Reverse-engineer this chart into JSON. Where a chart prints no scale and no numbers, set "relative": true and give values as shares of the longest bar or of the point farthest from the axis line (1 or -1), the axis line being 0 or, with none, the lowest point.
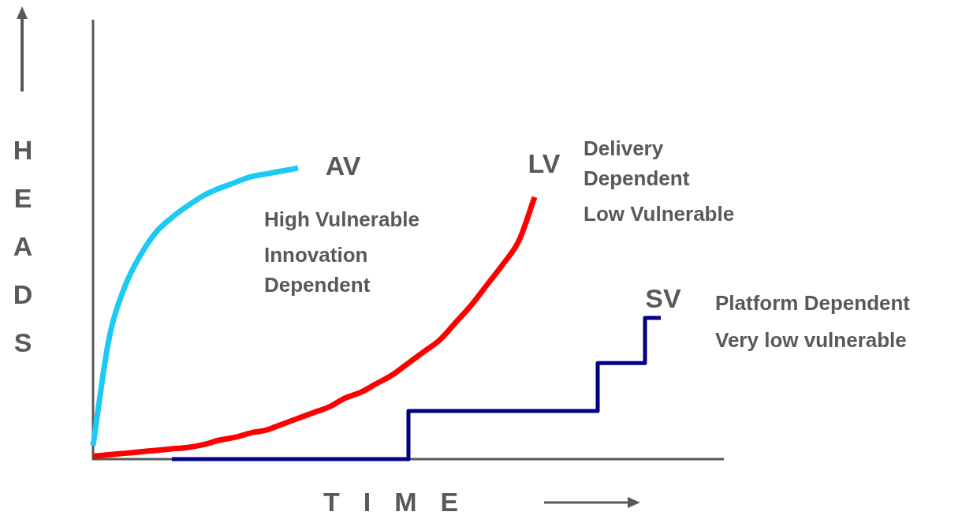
{
  "chart_data": {
    "type": "line",
    "relative": true,
    "xlabel": "TIME",
    "ylabel": "HEADS",
    "marker": "none",
    "categories": [
      null,
      null,
      null,
      null,
      null,
      null,
      null,
      null,
      null,
      null,
      null,
      null,
      null,
      null,
      null,
      null,
      null,
      null,
      null,
      null,
      null,
      null,
      null,
      null,
      null,
      null,
      null,
      null,
      null,
      null,
      null,
      null,
      null,
      null,
      null,
      null,
      null,
      null,
      null,
      null,
      null
    ],
    "series": [
      {
        "name": "AV",
        "color": "#1ccaf5",
        "values": [
          0.046,
          0.41,
          0.59,
          0.7,
          0.78,
          0.83,
          0.87,
          0.905,
          0.93,
          0.95,
          0.97,
          0.98,
          0.99,
          1.0,
          null,
          null,
          null,
          null,
          null,
          null,
          null,
          null,
          null,
          null,
          null,
          null,
          null,
          null,
          null,
          null,
          null,
          null,
          null,
          null,
          null,
          null,
          null,
          null,
          null,
          null,
          null
        ]
      },
      {
        "name": "LV",
        "color": "#ff0000",
        "values": [
          0.01,
          0.015,
          0.02,
          0.025,
          0.03,
          0.035,
          0.04,
          0.05,
          0.065,
          0.075,
          0.09,
          0.1,
          0.12,
          0.14,
          0.16,
          0.18,
          0.21,
          0.23,
          0.26,
          0.29,
          0.33,
          0.37,
          0.41,
          0.47,
          0.53,
          0.6,
          0.67,
          0.75,
          0.9,
          null,
          null,
          null,
          null,
          null,
          null,
          null,
          null,
          null,
          null,
          null,
          null
        ]
      },
      {
        "name": "SV",
        "type": "step",
        "color": "#000080",
        "values": [
          null,
          null,
          null,
          null,
          null,
          0,
          0,
          0,
          0,
          0,
          0,
          0,
          0,
          0,
          0,
          0,
          0,
          0,
          0,
          0,
          0,
          0.165,
          0.165,
          0.165,
          0.165,
          0.165,
          0.165,
          0.165,
          0.165,
          0.165,
          0.165,
          0.165,
          0.165,
          0.33,
          0.33,
          0.33,
          0.485,
          null,
          null,
          null,
          null
        ]
      }
    ],
    "annotations": [
      "High Vulnerable",
      "Innovation",
      "Dependent",
      "Delivery",
      "Dependent",
      "Low Vulnerable",
      "Platform Dependent",
      "Very low vulnerable"
    ]
  }
}
